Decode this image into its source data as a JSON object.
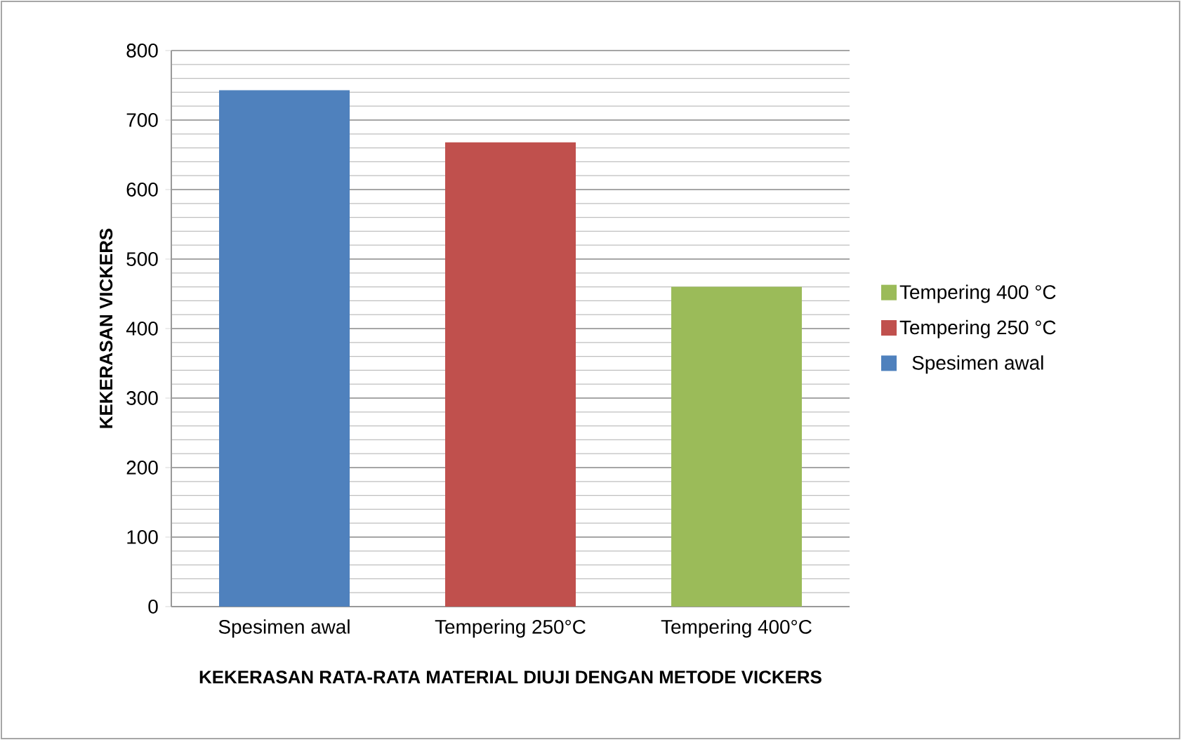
{
  "chart_data": {
    "type": "bar",
    "xlabel": "KEKERASAN RATA-RATA MATERIAL DIUJI DENGAN METODE VICKERS",
    "ylabel": "KEKERASAN VICKERS",
    "categories": [
      "Spesimen awal",
      "Tempering 250°C",
      "Tempering 400°C"
    ],
    "series": [
      {
        "name": "Spesimen awal",
        "color": "#4f81bd",
        "values": [
          743,
          null,
          null
        ]
      },
      {
        "name": "Tempering 250 °C",
        "color": "#c0504d",
        "values": [
          null,
          668,
          null
        ]
      },
      {
        "name": "Tempering 400 °C",
        "color": "#9bbb59",
        "values": [
          null,
          null,
          460
        ]
      }
    ],
    "ylim": [
      0,
      800
    ],
    "yticks": [
      0,
      100,
      200,
      300,
      400,
      500,
      600,
      700,
      800
    ],
    "grid": "y",
    "legend": "right"
  }
}
